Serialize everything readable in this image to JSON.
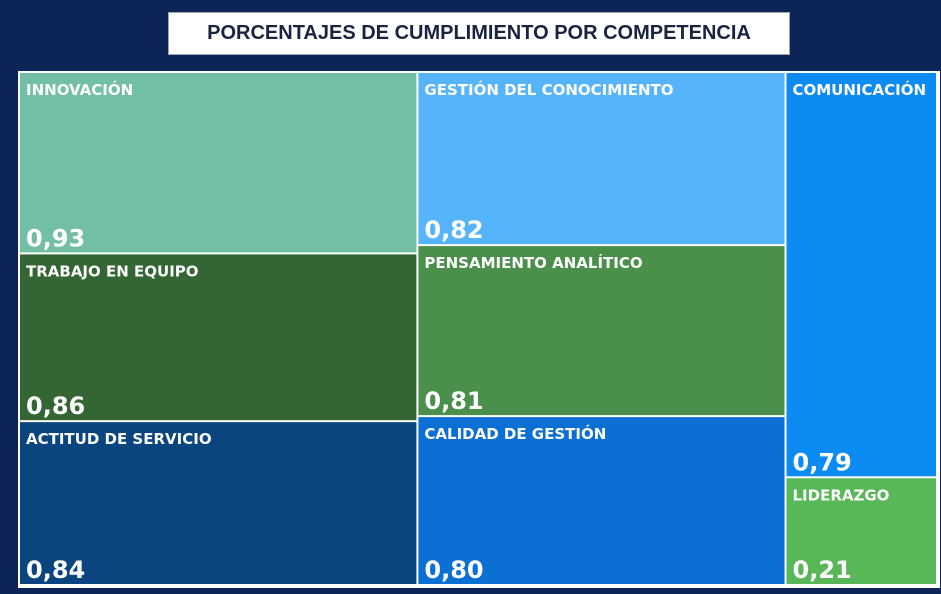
{
  "chart_data": {
    "type": "treemap",
    "title": "PORCENTAJES DE CUMPLIMIENTO POR COMPETENCIA",
    "categories": [
      "INNOVACIÓN",
      "TRABAJO EN EQUIPO",
      "ACTITUD DE SERVICIO",
      "GESTIÓN DEL CONOCIMIENTO",
      "PENSAMIENTO ANALÍTICO",
      "CALIDAD DE GESTIÓN",
      "COMUNICACIÓN",
      "LIDERAZGO"
    ],
    "values": [
      0.93,
      0.86,
      0.84,
      0.82,
      0.81,
      0.8,
      0.79,
      0.21
    ],
    "value_labels": [
      "0,93",
      "0,86",
      "0,84",
      "0,82",
      "0,81",
      "0,80",
      "0,79",
      "0,21"
    ],
    "colors": [
      "#73bfa6",
      "#336633",
      "#0a4580",
      "#55b4fb",
      "#4a8f4a",
      "#0c6fd3",
      "#0c8bf2",
      "#58b858"
    ]
  }
}
